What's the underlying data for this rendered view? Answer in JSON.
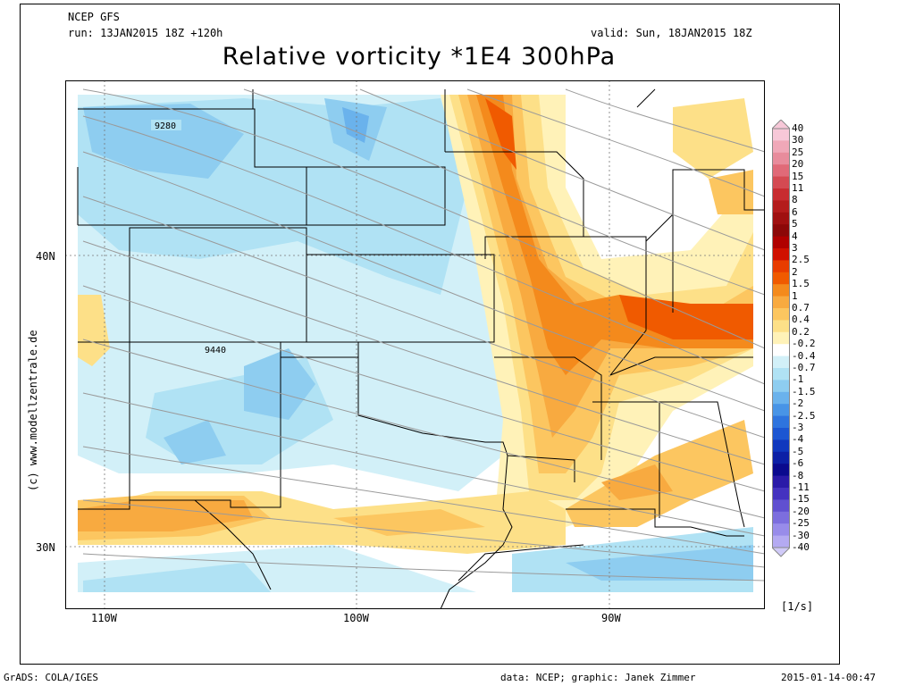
{
  "header": {
    "model": "NCEP GFS",
    "run": "run: 13JAN2015 18Z +120h",
    "valid": "valid: Sun, 18JAN2015 18Z",
    "title": "Relative vorticity *1E4 300hPa"
  },
  "map": {
    "lat_labels": [
      "40N",
      "30N"
    ],
    "lon_labels": [
      "110W",
      "100W",
      "90W"
    ],
    "contour_labels": [
      "9280",
      "9440"
    ],
    "credit": "(c) www.modellzentrale.de"
  },
  "legend": {
    "unit": "[1/s]",
    "levels": [
      {
        "label": "40",
        "color": "#f7c8d8"
      },
      {
        "label": "30",
        "color": "#f0a8b8"
      },
      {
        "label": "25",
        "color": "#e88c9c"
      },
      {
        "label": "20",
        "color": "#e06a78"
      },
      {
        "label": "15",
        "color": "#d44a52"
      },
      {
        "label": "11",
        "color": "#c82c30"
      },
      {
        "label": "8",
        "color": "#b41c1c"
      },
      {
        "label": "6",
        "color": "#a01010"
      },
      {
        "label": "5",
        "color": "#8c0808"
      },
      {
        "label": "4",
        "color": "#b00000"
      },
      {
        "label": "3",
        "color": "#d01000"
      },
      {
        "label": "2.5",
        "color": "#e83c00"
      },
      {
        "label": "2",
        "color": "#f05a00"
      },
      {
        "label": "1.5",
        "color": "#f48a1c"
      },
      {
        "label": "1",
        "color": "#f8aa40"
      },
      {
        "label": "0.7",
        "color": "#fcc660"
      },
      {
        "label": "0.4",
        "color": "#fde088"
      },
      {
        "label": "0.2",
        "color": "#fff2b8"
      },
      {
        "label": "-0.2",
        "color": "#ffffff"
      },
      {
        "label": "-0.4",
        "color": "#d2f0f8"
      },
      {
        "label": "-0.7",
        "color": "#b0e2f4"
      },
      {
        "label": "-1",
        "color": "#8ecdf0"
      },
      {
        "label": "-1.5",
        "color": "#6ab2ec"
      },
      {
        "label": "-2",
        "color": "#4894e6"
      },
      {
        "label": "-2.5",
        "color": "#2e74de"
      },
      {
        "label": "-3",
        "color": "#1c56d2"
      },
      {
        "label": "-4",
        "color": "#1038be"
      },
      {
        "label": "-5",
        "color": "#0c20a6"
      },
      {
        "label": "-6",
        "color": "#0a0a8e"
      },
      {
        "label": "-8",
        "color": "#2a1aa8"
      },
      {
        "label": "-11",
        "color": "#4432c0"
      },
      {
        "label": "-15",
        "color": "#6050d0"
      },
      {
        "label": "-20",
        "color": "#7c6ede"
      },
      {
        "label": "-25",
        "color": "#988cea"
      },
      {
        "label": "-30",
        "color": "#b4aaf2"
      },
      {
        "label": "-40",
        "color": "#d0caf8"
      }
    ]
  },
  "footer": {
    "left": "GrADS: COLA/IGES",
    "center": "data: NCEP; graphic: Janek Zimmer",
    "right": "2015-01-14-00:47"
  }
}
